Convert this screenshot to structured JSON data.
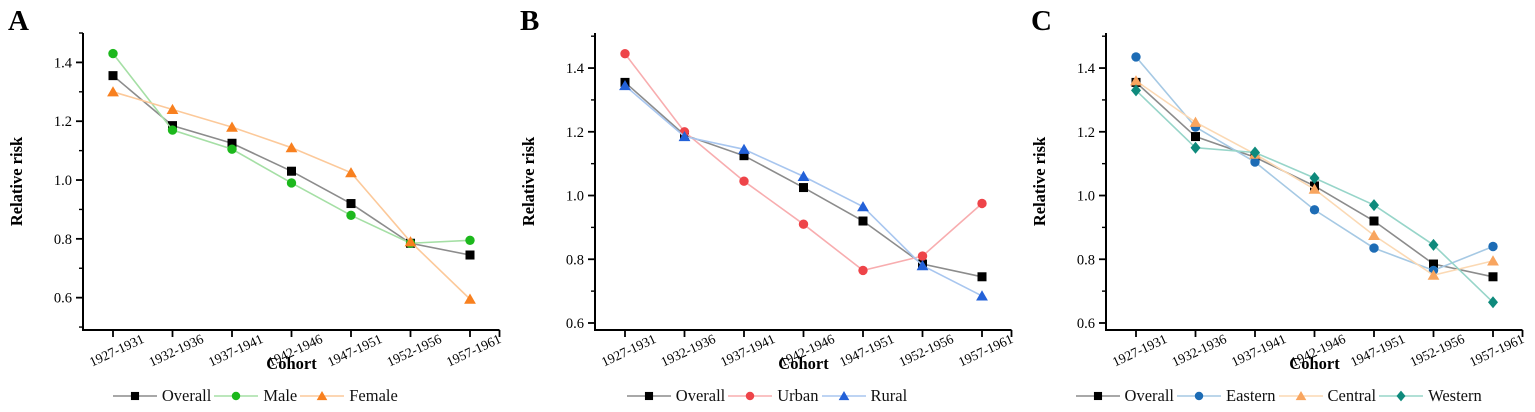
{
  "figure": {
    "background": "#ffffff",
    "text_color": "#000000"
  },
  "chart_data": [
    {
      "type": "line",
      "panel_label": "A",
      "xlabel": "Cohort",
      "ylabel": "Relative risk",
      "categories": [
        "1927-1931",
        "1932-1936",
        "1937-1941",
        "1942-1946",
        "1947-1951",
        "1952-1956",
        "1957-1961"
      ],
      "ylim": [
        0.49,
        1.5
      ],
      "yticks": [
        0.6,
        0.8,
        1.0,
        1.2,
        1.4
      ],
      "y_minor_step": 0.1,
      "grid": false,
      "legend_position": "bottom",
      "series": [
        {
          "name": "Overall",
          "marker": "square",
          "marker_color": "#000000",
          "line_color": "#8c8c8c",
          "values": [
            1.355,
            1.185,
            1.125,
            1.03,
            0.92,
            0.785,
            0.745
          ]
        },
        {
          "name": "Male",
          "marker": "circle",
          "marker_color": "#1cb81c",
          "line_color": "#a5dfa5",
          "values": [
            1.43,
            1.17,
            1.105,
            0.99,
            0.88,
            0.785,
            0.795
          ]
        },
        {
          "name": "Female",
          "marker": "triangle",
          "marker_color": "#f8801f",
          "line_color": "#fcc99a",
          "values": [
            1.3,
            1.24,
            1.18,
            1.11,
            1.025,
            0.79,
            0.595
          ]
        }
      ]
    },
    {
      "type": "line",
      "panel_label": "B",
      "xlabel": "Cohort",
      "ylabel": "Relative risk",
      "categories": [
        "1927-1931",
        "1932-1936",
        "1937-1941",
        "1942-1946",
        "1947-1951",
        "1952-1956",
        "1957-1961"
      ],
      "ylim": [
        0.578,
        1.51
      ],
      "yticks": [
        0.6,
        0.8,
        1.0,
        1.2,
        1.4
      ],
      "y_minor_step": 0.1,
      "grid": false,
      "legend_position": "bottom",
      "series": [
        {
          "name": "Overall",
          "marker": "square",
          "marker_color": "#000000",
          "line_color": "#8c8c8c",
          "values": [
            1.355,
            1.19,
            1.125,
            1.025,
            0.92,
            0.785,
            0.745
          ]
        },
        {
          "name": "Urban",
          "marker": "circle",
          "marker_color": "#ee4449",
          "line_color": "#f8adaf",
          "values": [
            1.445,
            1.2,
            1.045,
            0.91,
            0.765,
            0.81,
            0.975
          ]
        },
        {
          "name": "Rural",
          "marker": "triangle",
          "marker_color": "#2361d8",
          "line_color": "#a8c6ef",
          "values": [
            1.345,
            1.185,
            1.145,
            1.06,
            0.965,
            0.78,
            0.685
          ]
        }
      ]
    },
    {
      "type": "line",
      "panel_label": "C",
      "xlabel": "Cohort",
      "ylabel": "Relative risk",
      "categories": [
        "1927-1931",
        "1932-1936",
        "1937-1941",
        "1942-1946",
        "1947-1951",
        "1952-1956",
        "1957-1961"
      ],
      "ylim": [
        0.578,
        1.51
      ],
      "yticks": [
        0.6,
        0.8,
        1.0,
        1.2,
        1.4
      ],
      "y_minor_step": 0.1,
      "grid": false,
      "legend_position": "bottom",
      "series": [
        {
          "name": "Overall",
          "marker": "square",
          "marker_color": "#000000",
          "line_color": "#8c8c8c",
          "values": [
            1.355,
            1.185,
            1.12,
            1.03,
            0.92,
            0.785,
            0.745
          ]
        },
        {
          "name": "Eastern",
          "marker": "circle",
          "marker_color": "#1d6cb5",
          "line_color": "#a6c9e4",
          "values": [
            1.435,
            1.215,
            1.105,
            0.955,
            0.835,
            0.765,
            0.84
          ]
        },
        {
          "name": "Central",
          "marker": "triangle",
          "marker_color": "#f8a55f",
          "line_color": "#fbd9b4",
          "values": [
            1.36,
            1.23,
            1.13,
            1.02,
            0.875,
            0.75,
            0.795
          ]
        },
        {
          "name": "Western",
          "marker": "diamond",
          "marker_color": "#0e8a7c",
          "line_color": "#97d5c9",
          "values": [
            1.33,
            1.15,
            1.135,
            1.055,
            0.97,
            0.845,
            0.665
          ]
        }
      ]
    }
  ]
}
